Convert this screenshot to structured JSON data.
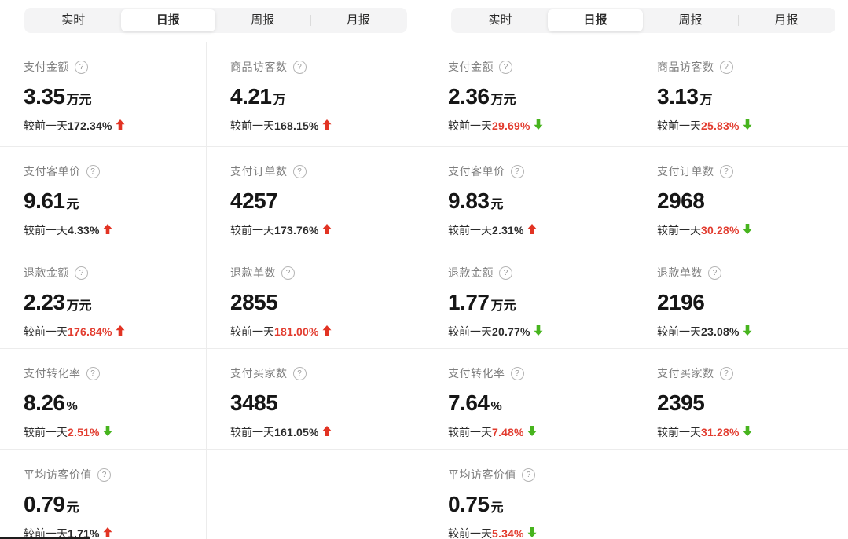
{
  "colors": {
    "red": "#e23c2f",
    "green": "#47b41e",
    "accent_arrow_up": "#e23323"
  },
  "icons": {
    "help_glyph": "?"
  },
  "tabs": {
    "items": [
      "实时",
      "日报",
      "周报",
      "月报"
    ],
    "active_index": 1
  },
  "change_prefix": "较前一天",
  "panels": [
    {
      "cells": [
        {
          "label": "支付金额",
          "value": "3.35",
          "unit": "万元",
          "change": "172.34%",
          "direction": "up",
          "tone": "neutral"
        },
        {
          "label": "商品访客数",
          "value": "4.21",
          "unit": "万",
          "change": "168.15%",
          "direction": "up",
          "tone": "neutral"
        },
        {
          "label": "支付客单价",
          "value": "9.61",
          "unit": "元",
          "change": "4.33%",
          "direction": "up",
          "tone": "neutral"
        },
        {
          "label": "支付订单数",
          "value": "4257",
          "unit": "",
          "change": "173.76%",
          "direction": "up",
          "tone": "neutral"
        },
        {
          "label": "退款金额",
          "value": "2.23",
          "unit": "万元",
          "change": "176.84%",
          "direction": "up",
          "tone": "bad"
        },
        {
          "label": "退款单数",
          "value": "2855",
          "unit": "",
          "change": "181.00%",
          "direction": "up",
          "tone": "bad"
        },
        {
          "label": "支付转化率",
          "value": "8.26",
          "unit": "%",
          "change": "2.51%",
          "direction": "down",
          "tone": "bad"
        },
        {
          "label": "支付买家数",
          "value": "3485",
          "unit": "",
          "change": "161.05%",
          "direction": "up",
          "tone": "neutral"
        },
        {
          "label": "平均访客价值",
          "value": "0.79",
          "unit": "元",
          "change": "1.71%",
          "direction": "up",
          "tone": "neutral"
        },
        null
      ]
    },
    {
      "cells": [
        {
          "label": "支付金额",
          "value": "2.36",
          "unit": "万元",
          "change": "29.69%",
          "direction": "down",
          "tone": "bad"
        },
        {
          "label": "商品访客数",
          "value": "3.13",
          "unit": "万",
          "change": "25.83%",
          "direction": "down",
          "tone": "bad"
        },
        {
          "label": "支付客单价",
          "value": "9.83",
          "unit": "元",
          "change": "2.31%",
          "direction": "up",
          "tone": "neutral"
        },
        {
          "label": "支付订单数",
          "value": "2968",
          "unit": "",
          "change": "30.28%",
          "direction": "down",
          "tone": "bad"
        },
        {
          "label": "退款金额",
          "value": "1.77",
          "unit": "万元",
          "change": "20.77%",
          "direction": "down",
          "tone": "neutral"
        },
        {
          "label": "退款单数",
          "value": "2196",
          "unit": "",
          "change": "23.08%",
          "direction": "down",
          "tone": "neutral"
        },
        {
          "label": "支付转化率",
          "value": "7.64",
          "unit": "%",
          "change": "7.48%",
          "direction": "down",
          "tone": "bad"
        },
        {
          "label": "支付买家数",
          "value": "2395",
          "unit": "",
          "change": "31.28%",
          "direction": "down",
          "tone": "bad"
        },
        {
          "label": "平均访客价值",
          "value": "0.75",
          "unit": "元",
          "change": "5.34%",
          "direction": "down",
          "tone": "bad"
        },
        null
      ]
    }
  ]
}
